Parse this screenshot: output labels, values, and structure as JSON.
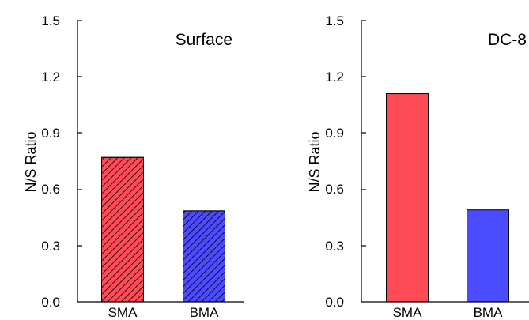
{
  "chart_data": [
    {
      "type": "bar",
      "title": "",
      "annotation": "Surface",
      "xlabel": "",
      "ylabel": "N/S Ratio",
      "ylim": [
        0,
        1.5
      ],
      "yticks": [
        "0.0",
        "0.3",
        "0.6",
        "0.9",
        "1.2",
        "1.5"
      ],
      "categories": [
        "SMA",
        "BMA"
      ],
      "values": [
        0.77,
        0.485
      ],
      "colors": [
        "#FF4B55",
        "#4B4BFF"
      ],
      "hatched": true
    },
    {
      "type": "bar",
      "title": "",
      "annotation": "DC-8",
      "xlabel": "",
      "ylabel": "N/S Ratio",
      "ylim": [
        0,
        1.5
      ],
      "yticks": [
        "0.0",
        "0.3",
        "0.6",
        "0.9",
        "1.2",
        "1.5"
      ],
      "categories": [
        "SMA",
        "BMA"
      ],
      "values": [
        1.11,
        0.49
      ],
      "colors": [
        "#FF4B55",
        "#4B4BFF"
      ],
      "hatched": false
    }
  ]
}
